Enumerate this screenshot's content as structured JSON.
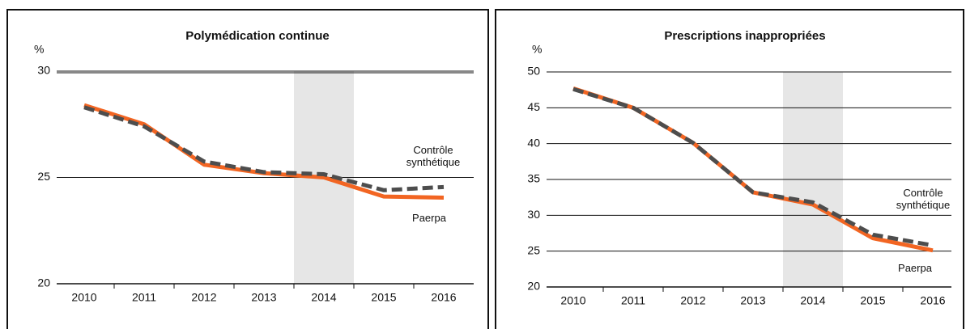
{
  "chart_data": [
    {
      "type": "line",
      "title": "Polymédication continue",
      "y_unit": "%",
      "categories": [
        "2010",
        "2011",
        "2012",
        "2013",
        "2014",
        "2015",
        "2016"
      ],
      "series": [
        {
          "name": "Paerpa",
          "color": "#f26522",
          "style": "solid",
          "values": [
            28.4,
            27.5,
            25.6,
            25.2,
            25.0,
            24.1,
            24.05
          ]
        },
        {
          "name": "Contrôle synthétique",
          "color": "#4d4d4d",
          "style": "dashed",
          "values": [
            28.3,
            27.4,
            25.75,
            25.25,
            25.15,
            24.4,
            24.55
          ]
        }
      ],
      "ylim": [
        20,
        30
      ],
      "yticks": [
        20,
        25,
        30
      ],
      "grid": true,
      "highlight": "2014"
    },
    {
      "type": "line",
      "title": "Prescriptions inappropriées",
      "y_unit": "%",
      "categories": [
        "2010",
        "2011",
        "2012",
        "2013",
        "2014",
        "2015",
        "2016"
      ],
      "series": [
        {
          "name": "Paerpa",
          "color": "#f26522",
          "style": "solid",
          "values": [
            47.7,
            45.0,
            40.1,
            33.2,
            31.5,
            26.8,
            25.1
          ]
        },
        {
          "name": "Contrôle synthétique",
          "color": "#4d4d4d",
          "style": "dashed",
          "values": [
            47.6,
            45.0,
            40.1,
            33.2,
            31.8,
            27.3,
            25.8
          ]
        }
      ],
      "ylim": [
        20,
        50
      ],
      "yticks": [
        20,
        25,
        30,
        35,
        40,
        45,
        50
      ],
      "grid": true,
      "highlight": "2014"
    }
  ]
}
